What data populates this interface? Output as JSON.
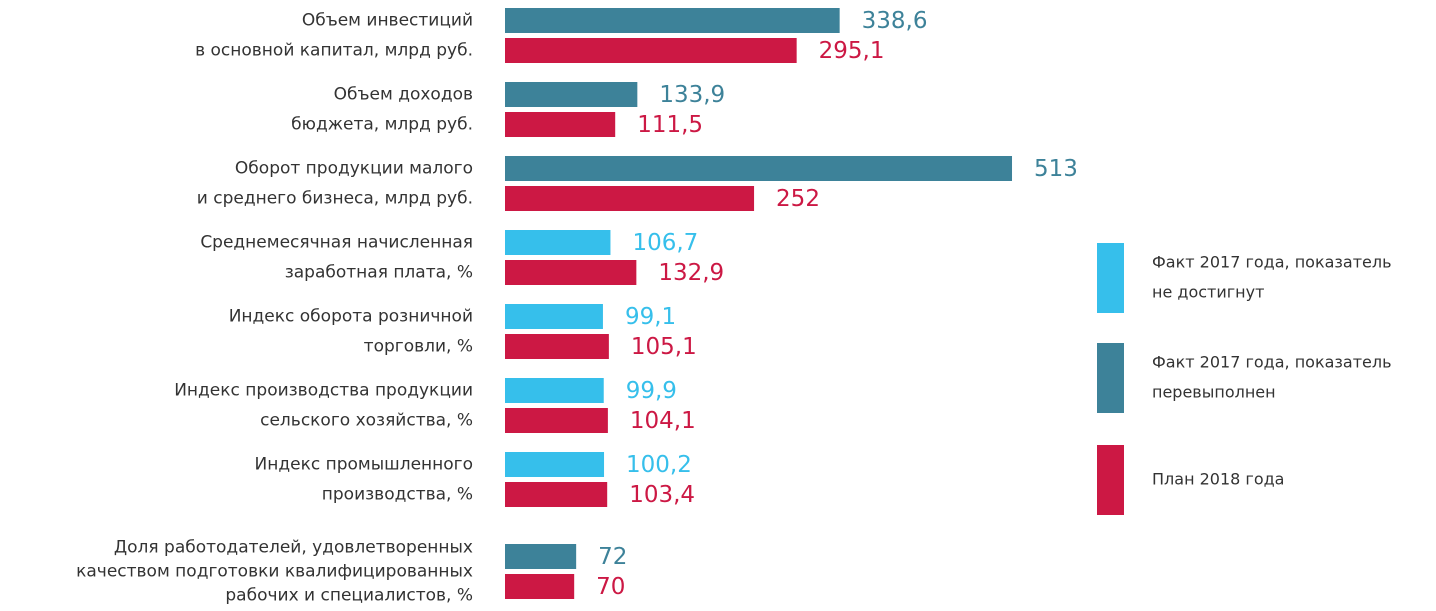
{
  "chart_data": {
    "type": "bar",
    "orientation": "horizontal",
    "categories": [
      [
        "Объем инвестиций",
        "в основной капитал, млрд руб."
      ],
      [
        "Объем доходов",
        "бюджета, млрд руб."
      ],
      [
        "Оборот продукции малого",
        "и среднего бизнеса, млрд руб."
      ],
      [
        "Среднемесячная начисленная",
        "заработная плата, %"
      ],
      [
        "Индекс оборота розничной",
        "торговли, %"
      ],
      [
        "Индекс производства продукции",
        "сельского хозяйства, %"
      ],
      [
        "Индекс промышленного",
        "производства, %"
      ],
      [
        "Доля работодателей, удовлетворенных",
        "качеством подготовки квалифицированных",
        "рабочих и специалистов, %"
      ]
    ],
    "series": [
      {
        "values": [
          338.6,
          133.9,
          513,
          106.7,
          99.1,
          99.9,
          100.2,
          72
        ],
        "value_labels": [
          "338,6",
          "133,9",
          "513",
          "106,7",
          "99,1",
          "99,9",
          "100,2",
          "72"
        ],
        "colors": [
          "#3d8299",
          "#3d8299",
          "#3d8299",
          "#36bfeb",
          "#36bfeb",
          "#36bfeb",
          "#36bfeb",
          "#3d8299"
        ]
      },
      {
        "values": [
          295.1,
          111.5,
          252,
          132.9,
          105.1,
          104.1,
          103.4,
          70
        ],
        "value_labels": [
          "295,1",
          "111,5",
          "252",
          "132,9",
          "105,1",
          "104,1",
          "103,4",
          "70"
        ],
        "color": "#cc1844"
      }
    ],
    "xlim": [
      0,
      600
    ],
    "legend": [
      {
        "label": [
          "Факт 2017 года, показатель",
          "не достигнут"
        ],
        "color": "#36bfeb"
      },
      {
        "label": [
          "Факт 2017 года, показатель",
          "перевыполнен"
        ],
        "color": "#3d8299"
      },
      {
        "label": [
          "План 2018 года"
        ],
        "color": "#cc1844"
      }
    ]
  }
}
